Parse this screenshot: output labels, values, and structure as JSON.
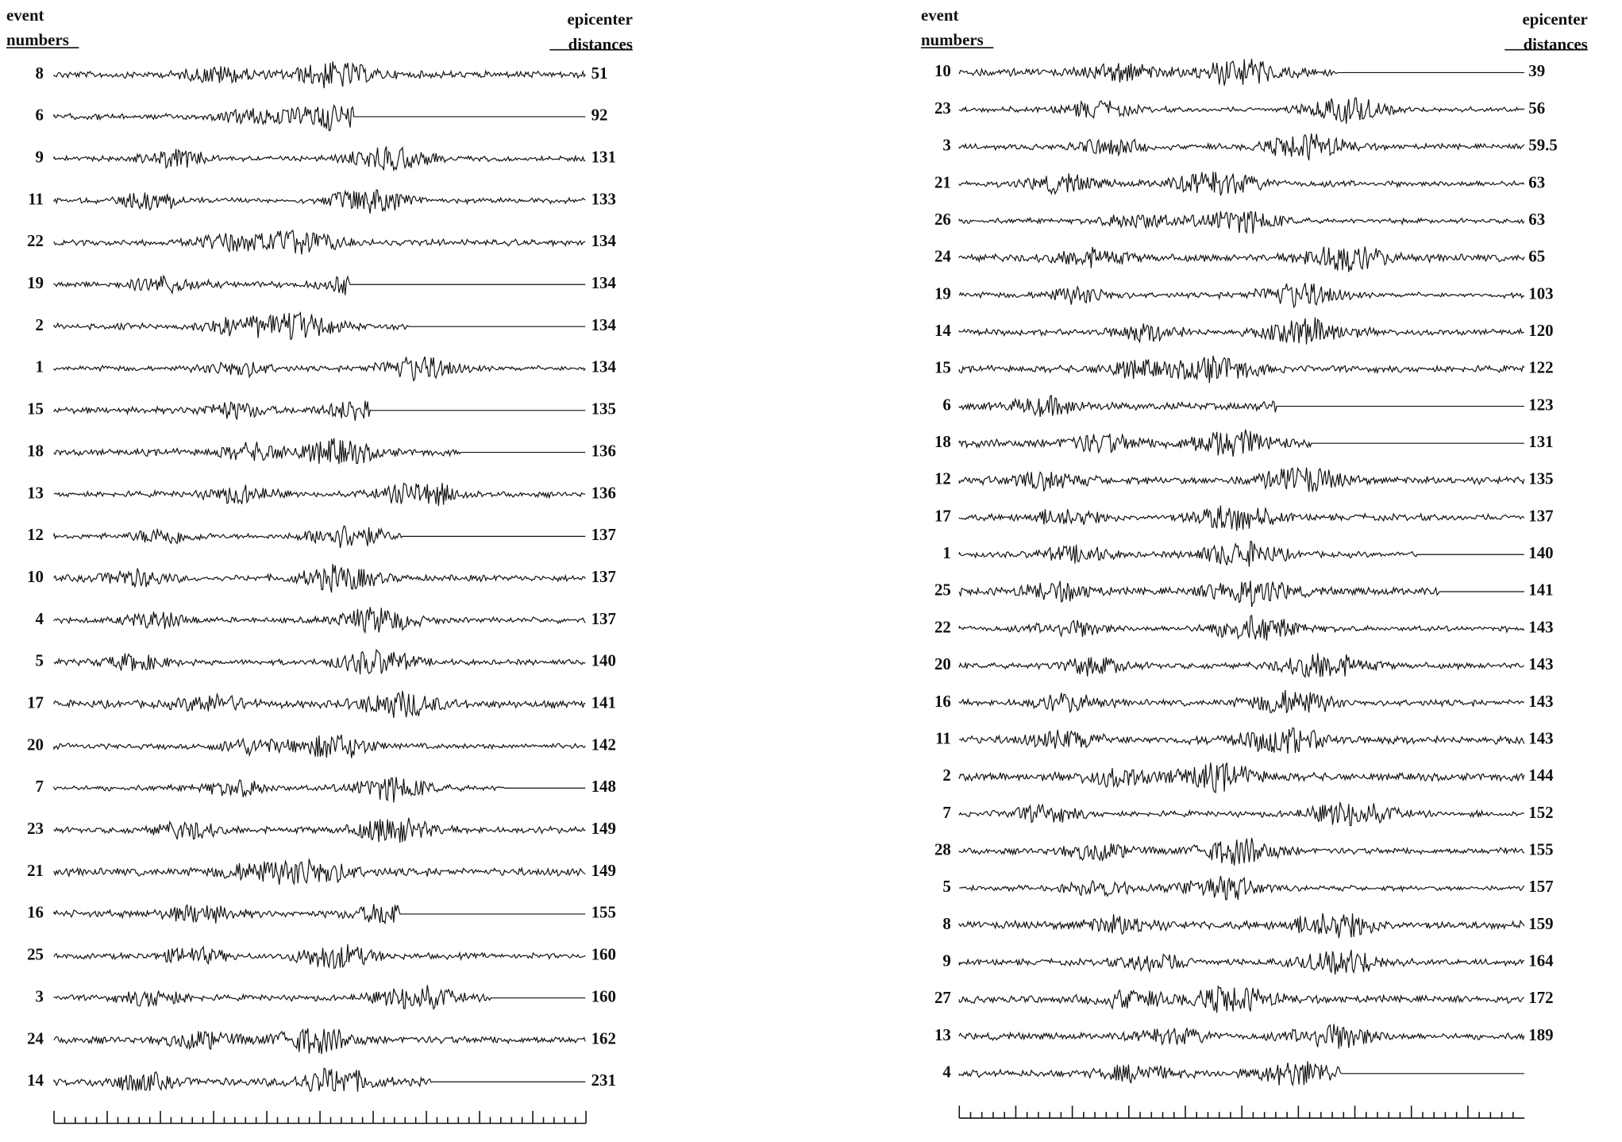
{
  "panels": [
    {
      "header_left": "event numbers",
      "header_right": "epicenter distances",
      "rows": [
        {
          "event": 8,
          "distance": 51
        },
        {
          "event": 6,
          "distance": 92
        },
        {
          "event": 9,
          "distance": 131
        },
        {
          "event": 11,
          "distance": 133
        },
        {
          "event": 22,
          "distance": 134
        },
        {
          "event": 19,
          "distance": 134
        },
        {
          "event": 2,
          "distance": 134
        },
        {
          "event": 1,
          "distance": 134
        },
        {
          "event": 15,
          "distance": 135
        },
        {
          "event": 18,
          "distance": 136
        },
        {
          "event": 13,
          "distance": 136
        },
        {
          "event": 12,
          "distance": 137
        },
        {
          "event": 10,
          "distance": 137
        },
        {
          "event": 4,
          "distance": 137
        },
        {
          "event": 5,
          "distance": 140
        },
        {
          "event": 17,
          "distance": 141
        },
        {
          "event": 20,
          "distance": 142
        },
        {
          "event": 7,
          "distance": 148
        },
        {
          "event": 23,
          "distance": 149
        },
        {
          "event": 21,
          "distance": 149
        },
        {
          "event": 16,
          "distance": 155
        },
        {
          "event": 25,
          "distance": 160
        },
        {
          "event": 3,
          "distance": 160
        },
        {
          "event": 24,
          "distance": 162
        },
        {
          "event": 14,
          "distance": 231
        }
      ]
    },
    {
      "header_left": "event numbers",
      "header_right": "epicenter distances",
      "rows": [
        {
          "event": 10,
          "distance": 39
        },
        {
          "event": 23,
          "distance": 56
        },
        {
          "event": 3,
          "distance": 59.5
        },
        {
          "event": 21,
          "distance": 63
        },
        {
          "event": 26,
          "distance": 63
        },
        {
          "event": 24,
          "distance": 65
        },
        {
          "event": 19,
          "distance": 103
        },
        {
          "event": 14,
          "distance": 120
        },
        {
          "event": 15,
          "distance": 122
        },
        {
          "event": 6,
          "distance": 123
        },
        {
          "event": 18,
          "distance": 131
        },
        {
          "event": 12,
          "distance": 135
        },
        {
          "event": 17,
          "distance": 137
        },
        {
          "event": 1,
          "distance": 140
        },
        {
          "event": 25,
          "distance": 141
        },
        {
          "event": 22,
          "distance": 143
        },
        {
          "event": 20,
          "distance": 143
        },
        {
          "event": 16,
          "distance": 143
        },
        {
          "event": 11,
          "distance": 143
        },
        {
          "event": 2,
          "distance": 144
        },
        {
          "event": 7,
          "distance": 152
        },
        {
          "event": 28,
          "distance": 155
        },
        {
          "event": 5,
          "distance": 157
        },
        {
          "event": 8,
          "distance": 159
        },
        {
          "event": 9,
          "distance": 164
        },
        {
          "event": 27,
          "distance": 172
        },
        {
          "event": 13,
          "distance": 189
        },
        {
          "event": 4
        }
      ]
    }
  ]
}
